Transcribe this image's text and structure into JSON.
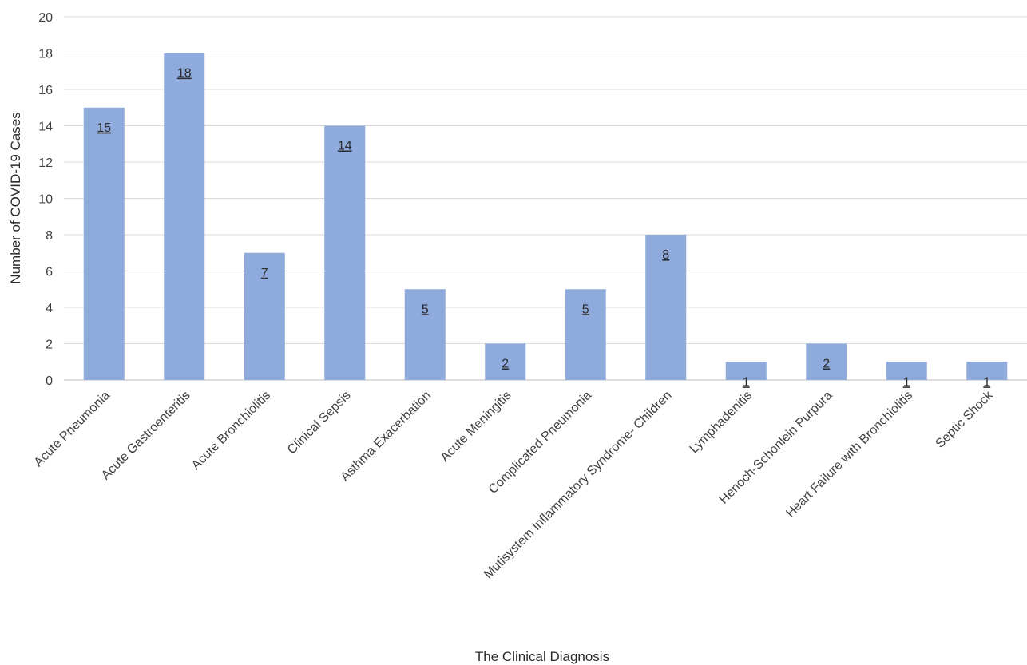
{
  "chart_data": {
    "type": "bar",
    "categories": [
      "Acute Pneumonia",
      "Acute Gastroenteritis",
      "Acute Bronchiolitis",
      "Clinical Sepsis",
      "Asthma Exacerbation",
      "Acute Meningitis",
      "Complicated Pneumonia",
      "Mutisystem Inflammatory Syndrome- Children",
      "Lymphadenitis",
      "Henoch-Schonlein Purpura",
      "Heart Failure with Bronchiolitis",
      "Septic Shock"
    ],
    "values": [
      15,
      18,
      7,
      14,
      5,
      2,
      5,
      8,
      1,
      2,
      1,
      1
    ],
    "title": "",
    "xlabel": "The Clinical Diagnosis",
    "ylabel": "Number of COVID-19 Cases",
    "ylim": [
      0,
      20
    ],
    "yticks": [
      0,
      2,
      4,
      6,
      8,
      10,
      12,
      14,
      16,
      18,
      20
    ],
    "grid": true,
    "data_labels": true,
    "bar_color": "#8faadc"
  }
}
